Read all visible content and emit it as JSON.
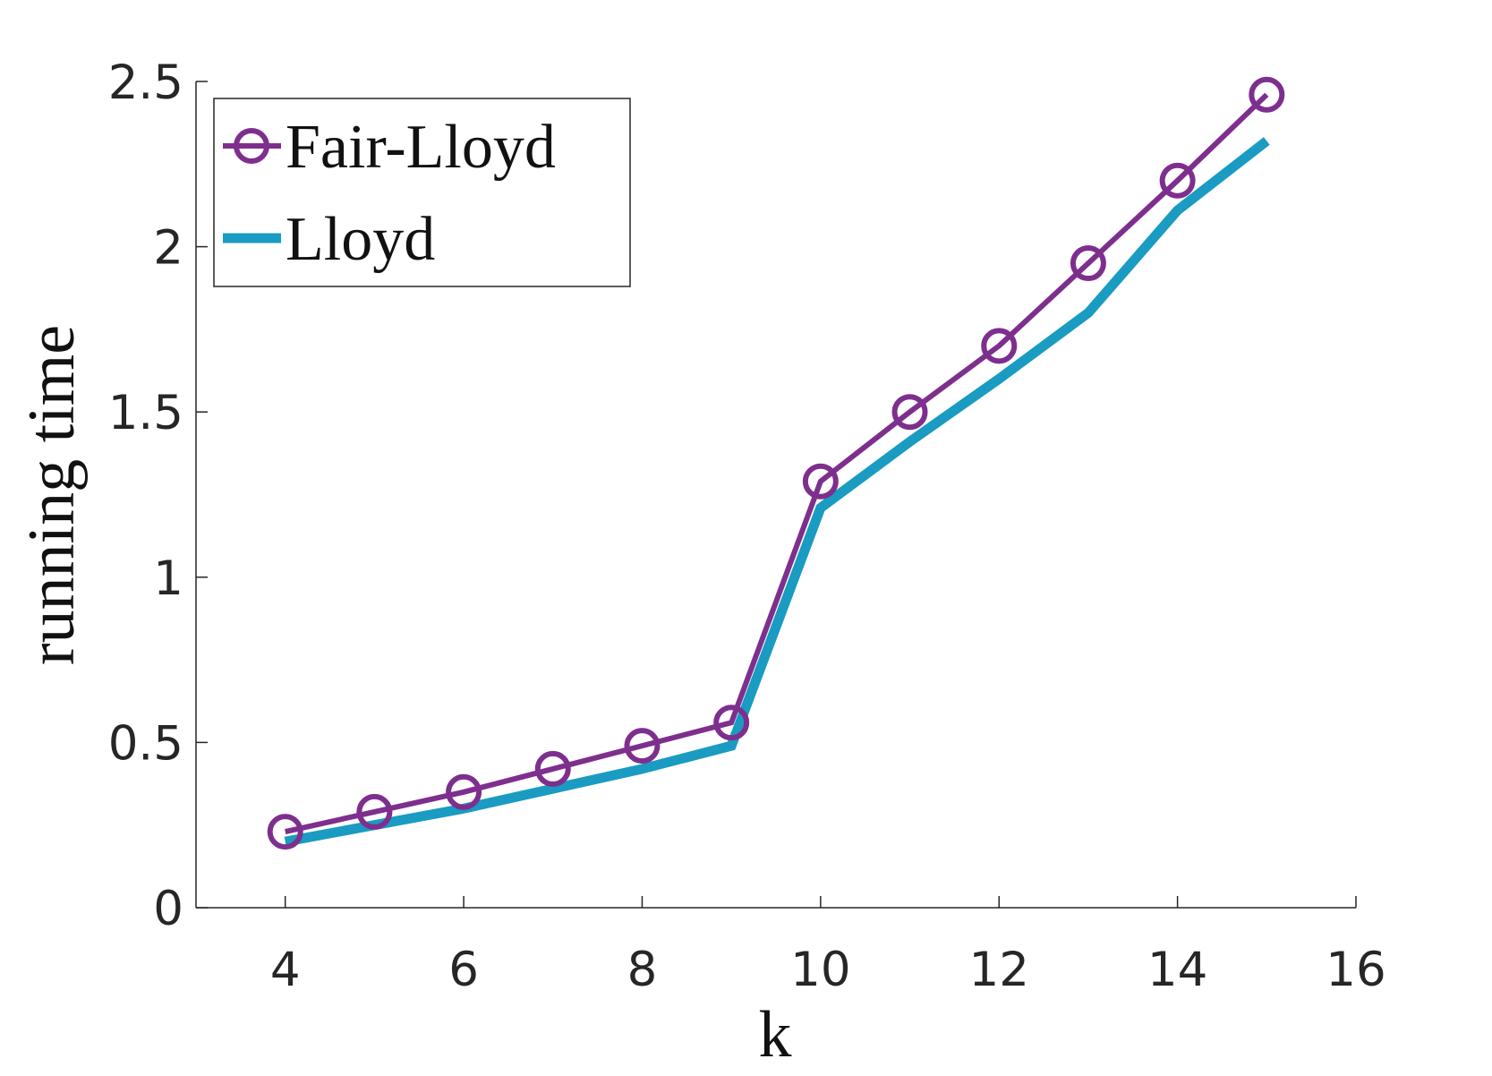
{
  "chart_data": {
    "type": "line",
    "xlabel": "k",
    "ylabel": "running time",
    "x": [
      4,
      5,
      6,
      7,
      8,
      9,
      10,
      11,
      12,
      13,
      14,
      15
    ],
    "series": [
      {
        "name": "Fair-Lloyd",
        "color": "#7e2f8e",
        "marker": "circle",
        "values": [
          0.23,
          0.29,
          0.35,
          0.42,
          0.49,
          0.56,
          1.29,
          1.5,
          1.7,
          1.95,
          2.2,
          2.46
        ]
      },
      {
        "name": "Lloyd",
        "color": "#1a9bc2",
        "values": [
          0.2,
          0.25,
          0.3,
          0.36,
          0.42,
          0.49,
          1.21,
          1.41,
          1.6,
          1.8,
          2.11,
          2.32
        ]
      }
    ],
    "xlim": [
      3,
      16
    ],
    "xticks": [
      4,
      6,
      8,
      10,
      12,
      14,
      16
    ],
    "ylim": [
      0,
      2.5
    ],
    "yticks": [
      0,
      0.5,
      1,
      1.5,
      2,
      2.5
    ],
    "legend": "upper left"
  }
}
